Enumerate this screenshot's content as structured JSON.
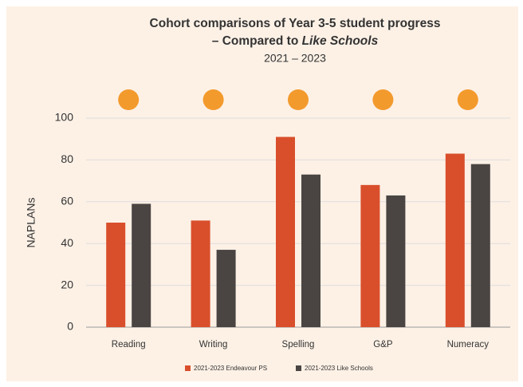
{
  "chart_data": {
    "type": "bar",
    "title": [
      "Cohort comparisons of Year 3-5 student progress",
      "– Compared to",
      "Like Schools"
    ],
    "subtitle": "2021 – 2023",
    "y_label": "NAPLANs",
    "categories": [
      "Reading",
      "Writing",
      "Spelling",
      "G&P",
      "Numeracy"
    ],
    "series": [
      {
        "name": "2021-2023 Endeavour PS",
        "color": "#d94f2b",
        "values": [
          50,
          51,
          91,
          68,
          83
        ]
      },
      {
        "name": "2021-2023 Like Schools",
        "color": "#4a4542",
        "values": [
          59,
          37,
          73,
          63,
          78
        ]
      }
    ],
    "ylim": [
      0,
      100
    ],
    "yticks": [
      0,
      20,
      40,
      60,
      80,
      100
    ],
    "grid": true
  }
}
